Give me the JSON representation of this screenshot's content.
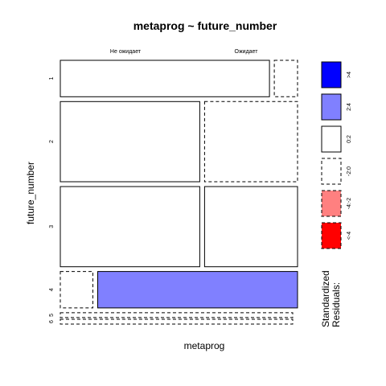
{
  "chart_data": {
    "type": "mosaic",
    "title": "metaprog ~ future_number",
    "xlabel": "metaprog",
    "ylabel": "future_number",
    "columns": [
      "Не ожидает",
      "Ожидает"
    ],
    "rows": [
      "1",
      "2",
      "3",
      "4",
      "5",
      "6"
    ],
    "row_shares": [
      0.15,
      0.33,
      0.33,
      0.15,
      0.02,
      0.02
    ],
    "column_shares_within_row": [
      [
        0.9,
        0.1
      ],
      [
        0.6,
        0.4
      ],
      [
        0.6,
        0.4
      ],
      [
        0.14,
        0.86
      ],
      [
        1.0,
        0.0
      ],
      [
        1.0,
        0.0
      ]
    ],
    "residual_class": [
      [
        "0:2",
        "-2:0"
      ],
      [
        "0:2",
        "-2:0"
      ],
      [
        "0:2",
        "0:2"
      ],
      [
        "-2:0",
        "2:4"
      ],
      [
        "-2:0",
        "0:2"
      ],
      [
        "-2:0",
        "0:2"
      ]
    ],
    "legend": {
      "title": "Standardized Residuals:",
      "entries": [
        {
          "label": ">4",
          "fill": "#0000ff",
          "dashed": false
        },
        {
          "label": "2:4",
          "fill": "#8080ff",
          "dashed": false
        },
        {
          "label": "0:2",
          "fill": "#ffffff",
          "dashed": false
        },
        {
          "label": "-2:0",
          "fill": "#ffffff",
          "dashed": true
        },
        {
          "label": "-4:-2",
          "fill": "#ff8080",
          "dashed": true
        },
        {
          "label": "<-4",
          "fill": "#ff0000",
          "dashed": true
        }
      ]
    }
  }
}
